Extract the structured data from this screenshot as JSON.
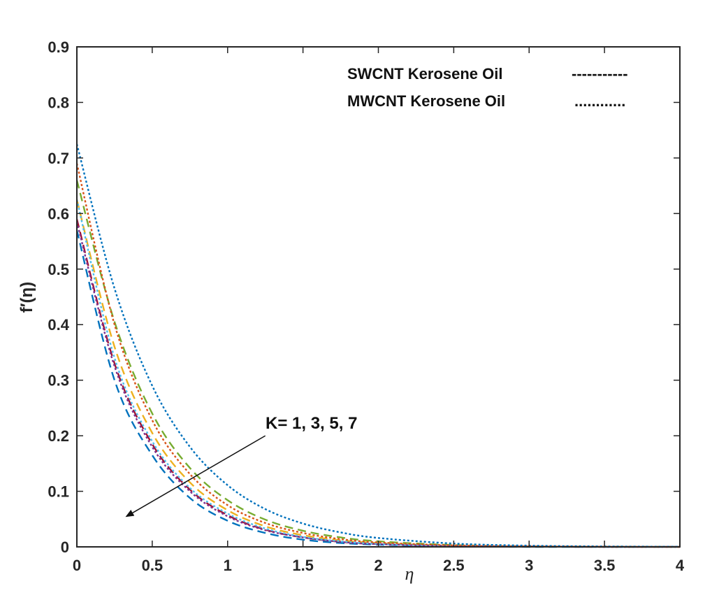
{
  "chart_data": {
    "type": "line",
    "title": "",
    "xlabel": "η",
    "ylabel": "f′(η)",
    "xlim": [
      0,
      4
    ],
    "ylim": [
      0,
      0.9
    ],
    "xticks": [
      "0",
      "0.5",
      "1",
      "1.5",
      "2",
      "2.5",
      "3",
      "3.5",
      "4"
    ],
    "yticks": [
      "0",
      "0.1",
      "0.2",
      "0.3",
      "0.4",
      "0.5",
      "0.6",
      "0.7",
      "0.8",
      "0.9"
    ],
    "grid": false,
    "legend": [
      {
        "label": "SWCNT Kerosene Oil",
        "sample": "-----------",
        "style": "dashed"
      },
      {
        "label": "MWCNT Kerosene Oil",
        "sample": "............",
        "style": "dotted"
      }
    ],
    "legend_position": "top-right",
    "annotation": {
      "text": "K= 1, 3, 5, 7",
      "arrow_from": [
        1.25,
        0.2
      ],
      "arrow_to": [
        0.33,
        0.055
      ]
    },
    "x": [
      0,
      0.25,
      0.5,
      0.75,
      1,
      1.25,
      1.5,
      1.75,
      2,
      2.5,
      3,
      3.5,
      4
    ],
    "series": [
      {
        "name": "SWCNT K=1",
        "style": "dashed",
        "color": "#0072bd",
        "values": [
          0.57,
          0.3,
          0.165,
          0.088,
          0.047,
          0.025,
          0.013,
          0.007,
          0.004,
          0.001,
          0.0,
          0.0,
          0.0
        ]
      },
      {
        "name": "SWCNT K=3",
        "style": "dashed",
        "color": "#a2142f",
        "values": [
          0.59,
          0.33,
          0.185,
          0.103,
          0.057,
          0.031,
          0.017,
          0.009,
          0.005,
          0.0015,
          0.0005,
          0.0,
          0.0
        ]
      },
      {
        "name": "SWCNT K=5",
        "style": "dashed",
        "color": "#edb120",
        "values": [
          0.625,
          0.36,
          0.205,
          0.116,
          0.066,
          0.037,
          0.021,
          0.012,
          0.007,
          0.002,
          0.0007,
          0.0,
          0.0
        ]
      },
      {
        "name": "SWCNT K=7",
        "style": "dashed",
        "color": "#77ac30",
        "values": [
          0.66,
          0.405,
          0.24,
          0.142,
          0.084,
          0.049,
          0.029,
          0.017,
          0.01,
          0.0033,
          0.001,
          0.0003,
          0.0
        ]
      },
      {
        "name": "MWCNT K=1",
        "style": "dotted",
        "color": "#7e2f8e",
        "values": [
          0.585,
          0.325,
          0.18,
          0.1,
          0.055,
          0.03,
          0.017,
          0.009,
          0.005,
          0.0015,
          0.0005,
          0.0,
          0.0
        ]
      },
      {
        "name": "MWCNT K=3",
        "style": "dotted",
        "color": "#4dbeee",
        "values": [
          0.625,
          0.34,
          0.19,
          0.106,
          0.06,
          0.033,
          0.018,
          0.01,
          0.0055,
          0.0017,
          0.0005,
          0.0,
          0.0
        ]
      },
      {
        "name": "MWCNT K=5",
        "style": "dotted",
        "color": "#d95319",
        "values": [
          0.69,
          0.4,
          0.228,
          0.131,
          0.075,
          0.043,
          0.025,
          0.014,
          0.008,
          0.0027,
          0.0009,
          0.0003,
          0.0
        ]
      },
      {
        "name": "MWCNT K=7",
        "style": "dotted",
        "color": "#0072bd",
        "values": [
          0.725,
          0.465,
          0.29,
          0.18,
          0.111,
          0.068,
          0.042,
          0.026,
          0.016,
          0.006,
          0.0022,
          0.0008,
          0.0003
        ]
      }
    ]
  }
}
